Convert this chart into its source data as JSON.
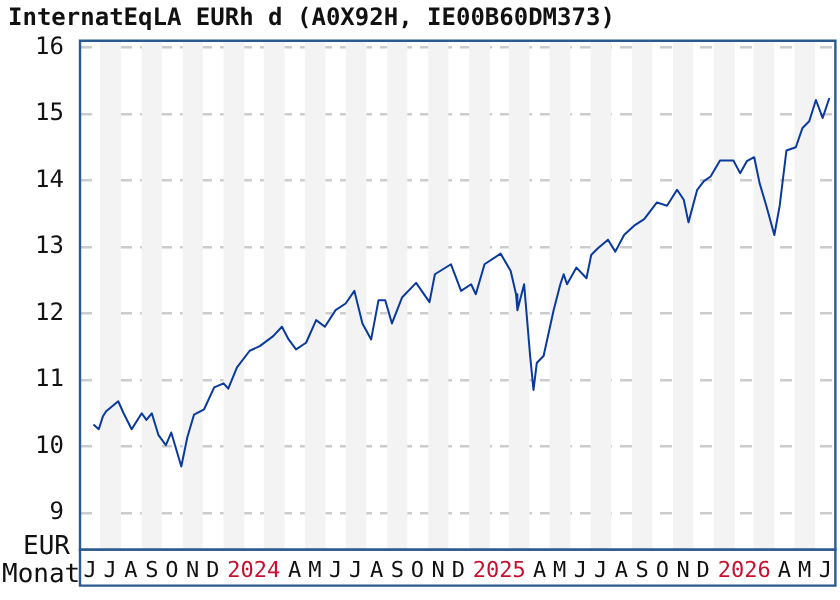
{
  "chart_data": {
    "type": "line",
    "title": "InternatEqLA EURh d (A0X92H, IE00B60DM373)",
    "xlabel": "Monat",
    "ylabel": "EUR",
    "x": [
      "2023-06-21",
      "2023-06-29",
      "2023-07-05",
      "2023-07-10",
      "2023-07-28",
      "2023-08-05",
      "2023-08-17",
      "2023-09-01",
      "2023-09-08",
      "2023-09-16",
      "2023-09-26",
      "2023-10-07",
      "2023-10-15",
      "2023-10-30",
      "2023-11-08",
      "2023-11-18",
      "2023-12-03",
      "2023-12-18",
      "2024-01-01",
      "2024-01-08",
      "2024-01-21",
      "2024-02-09",
      "2024-02-24",
      "2024-03-15",
      "2024-03-28",
      "2024-04-07",
      "2024-04-18",
      "2024-05-03",
      "2024-05-18",
      "2024-05-31",
      "2024-06-16",
      "2024-07-01",
      "2024-07-14",
      "2024-07-26",
      "2024-08-08",
      "2024-08-19",
      "2024-08-29",
      "2024-09-08",
      "2024-09-23",
      "2024-10-14",
      "2024-11-03",
      "2024-11-11",
      "2024-12-05",
      "2024-12-20",
      "2025-01-04",
      "2025-01-11",
      "2025-01-24",
      "2025-02-17",
      "2025-03-04",
      "2025-03-12",
      "2025-03-14",
      "2025-03-24",
      "2025-04-02",
      "2025-04-07",
      "2025-04-12",
      "2025-04-22",
      "2025-05-07",
      "2025-05-17",
      "2025-05-22",
      "2025-05-27",
      "2025-06-10",
      "2025-06-25",
      "2025-07-02",
      "2025-07-12",
      "2025-07-27",
      "2025-08-07",
      "2025-08-20",
      "2025-09-04",
      "2025-09-19",
      "2025-10-08",
      "2025-10-23",
      "2025-11-07",
      "2025-11-17",
      "2025-11-24",
      "2025-12-07",
      "2025-12-17",
      "2025-12-27",
      "2026-01-10",
      "2026-01-30",
      "2026-02-09",
      "2026-02-19",
      "2026-03-02",
      "2026-03-10",
      "2026-03-20",
      "2026-04-01",
      "2026-04-09",
      "2026-04-19",
      "2026-05-03",
      "2026-05-13",
      "2026-05-23",
      "2026-06-02",
      "2026-06-12",
      "2026-06-22"
    ],
    "series": [
      {
        "color": "#0a3a9e",
        "values": [
          10.33,
          10.26,
          10.45,
          10.53,
          10.68,
          10.5,
          10.26,
          10.5,
          10.4,
          10.5,
          10.17,
          10.02,
          10.21,
          9.7,
          10.14,
          10.48,
          10.56,
          10.89,
          10.95,
          10.87,
          11.19,
          11.44,
          11.51,
          11.66,
          11.8,
          11.61,
          11.46,
          11.56,
          11.9,
          11.8,
          12.05,
          12.15,
          12.34,
          11.85,
          11.61,
          12.2,
          12.2,
          11.85,
          12.24,
          12.46,
          12.17,
          12.59,
          12.74,
          12.34,
          12.44,
          12.29,
          12.74,
          12.9,
          12.64,
          12.29,
          12.05,
          12.44,
          11.36,
          10.85,
          11.26,
          11.36,
          12.05,
          12.44,
          12.59,
          12.44,
          12.69,
          12.53,
          12.88,
          12.98,
          13.11,
          12.93,
          13.18,
          13.32,
          13.42,
          13.67,
          13.62,
          13.86,
          13.71,
          13.37,
          13.86,
          13.99,
          14.06,
          14.3,
          14.3,
          14.11,
          14.29,
          14.35,
          13.96,
          13.62,
          13.18,
          13.62,
          14.45,
          14.5,
          14.79,
          14.89,
          15.21,
          14.94,
          15.24
        ]
      }
    ],
    "xlim": [
      "2023-06-01",
      "2026-07-01"
    ],
    "xticks": [
      {
        "value": "2023-06-16",
        "label": "J"
      },
      {
        "value": "2023-07-16",
        "label": "J"
      },
      {
        "value": "2023-08-16",
        "label": "A"
      },
      {
        "value": "2023-09-16",
        "label": "S"
      },
      {
        "value": "2023-10-16",
        "label": "O"
      },
      {
        "value": "2023-11-16",
        "label": "N"
      },
      {
        "value": "2023-12-16",
        "label": "D"
      },
      {
        "value": "2024-02-15",
        "label": "2024"
      },
      {
        "value": "2024-04-16",
        "label": "A"
      },
      {
        "value": "2024-05-16",
        "label": "M"
      },
      {
        "value": "2024-06-16",
        "label": "J"
      },
      {
        "value": "2024-07-16",
        "label": "J"
      },
      {
        "value": "2024-08-16",
        "label": "A"
      },
      {
        "value": "2024-09-16",
        "label": "S"
      },
      {
        "value": "2024-10-16",
        "label": "O"
      },
      {
        "value": "2024-11-16",
        "label": "N"
      },
      {
        "value": "2024-12-16",
        "label": "D"
      },
      {
        "value": "2025-02-15",
        "label": "2025"
      },
      {
        "value": "2025-04-16",
        "label": "A"
      },
      {
        "value": "2025-05-16",
        "label": "M"
      },
      {
        "value": "2025-06-16",
        "label": "J"
      },
      {
        "value": "2025-07-16",
        "label": "J"
      },
      {
        "value": "2025-08-16",
        "label": "A"
      },
      {
        "value": "2025-09-16",
        "label": "S"
      },
      {
        "value": "2025-10-16",
        "label": "O"
      },
      {
        "value": "2025-11-16",
        "label": "N"
      },
      {
        "value": "2025-12-16",
        "label": "D"
      },
      {
        "value": "2026-02-15",
        "label": "2026"
      },
      {
        "value": "2026-04-16",
        "label": "A"
      },
      {
        "value": "2026-05-16",
        "label": "M"
      },
      {
        "value": "2026-06-16",
        "label": "J"
      }
    ],
    "ylim": [
      8.45,
      16.1
    ],
    "yticks": [
      9,
      10,
      11,
      12,
      13,
      14,
      15,
      16
    ],
    "bands": [
      {
        "axis": "x",
        "from": "2023-07-01",
        "to": "2023-08-01",
        "color": "#f3f3f3"
      },
      {
        "axis": "x",
        "from": "2023-09-01",
        "to": "2023-10-01",
        "color": "#f3f3f3"
      },
      {
        "axis": "x",
        "from": "2023-11-01",
        "to": "2023-12-01",
        "color": "#f3f3f3"
      },
      {
        "axis": "x",
        "from": "2024-01-01",
        "to": "2024-02-01",
        "color": "#f3f3f3"
      },
      {
        "axis": "x",
        "from": "2024-03-01",
        "to": "2024-04-01",
        "color": "#f3f3f3"
      },
      {
        "axis": "x",
        "from": "2024-05-01",
        "to": "2024-06-01",
        "color": "#f3f3f3"
      },
      {
        "axis": "x",
        "from": "2024-07-01",
        "to": "2024-08-01",
        "color": "#f3f3f3"
      },
      {
        "axis": "x",
        "from": "2024-09-01",
        "to": "2024-10-01",
        "color": "#f3f3f3"
      },
      {
        "axis": "x",
        "from": "2024-11-01",
        "to": "2024-12-01",
        "color": "#f3f3f3"
      },
      {
        "axis": "x",
        "from": "2025-01-01",
        "to": "2025-02-01",
        "color": "#f3f3f3"
      },
      {
        "axis": "x",
        "from": "2025-03-01",
        "to": "2025-04-01",
        "color": "#f3f3f3"
      },
      {
        "axis": "x",
        "from": "2025-05-01",
        "to": "2025-06-01",
        "color": "#f3f3f3"
      },
      {
        "axis": "x",
        "from": "2025-07-01",
        "to": "2025-08-01",
        "color": "#f3f3f3"
      },
      {
        "axis": "x",
        "from": "2025-09-01",
        "to": "2025-10-01",
        "color": "#f3f3f3"
      },
      {
        "axis": "x",
        "from": "2025-11-01",
        "to": "2025-12-01",
        "color": "#f3f3f3"
      },
      {
        "axis": "x",
        "from": "2026-01-01",
        "to": "2026-02-01",
        "color": "#f3f3f3"
      },
      {
        "axis": "x",
        "from": "2026-03-01",
        "to": "2026-04-01",
        "color": "#f3f3f3"
      },
      {
        "axis": "x",
        "from": "2026-05-01",
        "to": "2026-06-01",
        "color": "#f3f3f3"
      }
    ],
    "grid": "y",
    "legend": false,
    "marker": "none",
    "line_style": "solid"
  }
}
